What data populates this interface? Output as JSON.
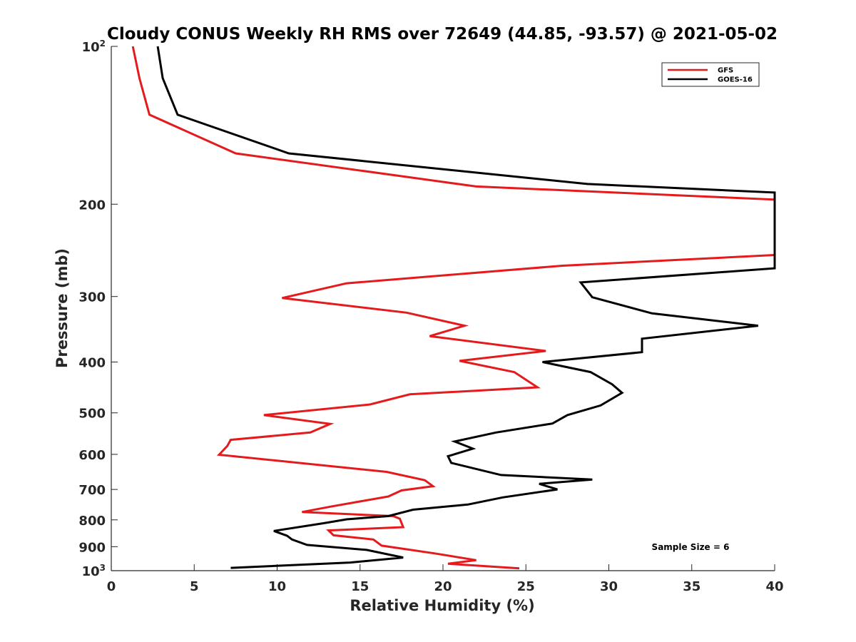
{
  "chart_data": {
    "type": "line",
    "title": "Cloudy CONUS Weekly RH RMS over 72649 (44.85, -93.57) @ 2021-05-02",
    "xlabel": "Relative Humidity (%)",
    "ylabel": "Pressure (mb)",
    "xlim": [
      0,
      40
    ],
    "ylim": [
      100,
      1000
    ],
    "y_scale": "log",
    "y_reversed": true,
    "grid": false,
    "legend_position": "top-right",
    "annotation": "Sample Size = 6",
    "x_ticks": [
      "0",
      "5",
      "10",
      "15",
      "20",
      "25",
      "30",
      "35",
      "40"
    ],
    "y_ticks": [
      {
        "value": 100,
        "base": "10",
        "exp": "2"
      },
      {
        "value": 200,
        "label": "200"
      },
      {
        "value": 300,
        "label": "300"
      },
      {
        "value": 400,
        "label": "400"
      },
      {
        "value": 500,
        "label": "500"
      },
      {
        "value": 600,
        "label": "600"
      },
      {
        "value": 700,
        "label": "700"
      },
      {
        "value": 800,
        "label": "800"
      },
      {
        "value": 900,
        "label": "900"
      },
      {
        "value": 1000,
        "base": "10",
        "exp": "3"
      }
    ],
    "series": [
      {
        "name": "GFS",
        "color": "#e41a1c",
        "points": [
          [
            1.3,
            100
          ],
          [
            1.7,
            115
          ],
          [
            2.3,
            135
          ],
          [
            7.5,
            160
          ],
          [
            22.0,
            185
          ],
          [
            40.0,
            196
          ],
          [
            40.0,
            250
          ],
          [
            27.2,
            262
          ],
          [
            14.2,
            283
          ],
          [
            10.3,
            302
          ],
          [
            17.8,
            322
          ],
          [
            21.3,
            341
          ],
          [
            19.2,
            357
          ],
          [
            26.2,
            381
          ],
          [
            21.0,
            398
          ],
          [
            24.3,
            418
          ],
          [
            25.7,
            447
          ],
          [
            18.0,
            461
          ],
          [
            15.6,
            482
          ],
          [
            9.2,
            505
          ],
          [
            13.2,
            525
          ],
          [
            12.0,
            545
          ],
          [
            7.2,
            563
          ],
          [
            7.0,
            578
          ],
          [
            6.5,
            601
          ],
          [
            16.6,
            648
          ],
          [
            18.9,
            672
          ],
          [
            19.4,
            690
          ],
          [
            17.5,
            703
          ],
          [
            16.7,
            722
          ],
          [
            13.2,
            755
          ],
          [
            11.5,
            773
          ],
          [
            17.0,
            787
          ],
          [
            17.4,
            796
          ],
          [
            17.6,
            826
          ],
          [
            13.1,
            838
          ],
          [
            13.4,
            856
          ],
          [
            15.8,
            872
          ],
          [
            16.3,
            896
          ],
          [
            19.5,
            927
          ],
          [
            22.0,
            955
          ],
          [
            20.3,
            970
          ],
          [
            24.6,
            990
          ]
        ]
      },
      {
        "name": "GOES-16",
        "color": "#000000",
        "points": [
          [
            2.8,
            100
          ],
          [
            3.1,
            115
          ],
          [
            4.0,
            135
          ],
          [
            10.7,
            160
          ],
          [
            28.7,
            183
          ],
          [
            40.0,
            190
          ],
          [
            40.0,
            265
          ],
          [
            28.3,
            282
          ],
          [
            29.0,
            301
          ],
          [
            32.6,
            323
          ],
          [
            39.0,
            341
          ],
          [
            32.0,
            361
          ],
          [
            32.0,
            383
          ],
          [
            26.0,
            400
          ],
          [
            28.9,
            418
          ],
          [
            30.2,
            441
          ],
          [
            30.8,
            458
          ],
          [
            29.5,
            484
          ],
          [
            27.5,
            505
          ],
          [
            26.6,
            524
          ],
          [
            23.2,
            545
          ],
          [
            20.7,
            567
          ],
          [
            21.8,
            585
          ],
          [
            20.3,
            605
          ],
          [
            20.5,
            623
          ],
          [
            23.5,
            657
          ],
          [
            29.0,
            670
          ],
          [
            25.8,
            683
          ],
          [
            26.9,
            700
          ],
          [
            23.6,
            725
          ],
          [
            21.5,
            748
          ],
          [
            18.2,
            765
          ],
          [
            16.7,
            787
          ],
          [
            14.2,
            798
          ],
          [
            12.8,
            812
          ],
          [
            9.8,
            840
          ],
          [
            10.6,
            858
          ],
          [
            10.9,
            872
          ],
          [
            11.8,
            893
          ],
          [
            15.4,
            913
          ],
          [
            17.6,
            944
          ],
          [
            14.4,
            965
          ],
          [
            7.2,
            988
          ]
        ]
      }
    ]
  }
}
